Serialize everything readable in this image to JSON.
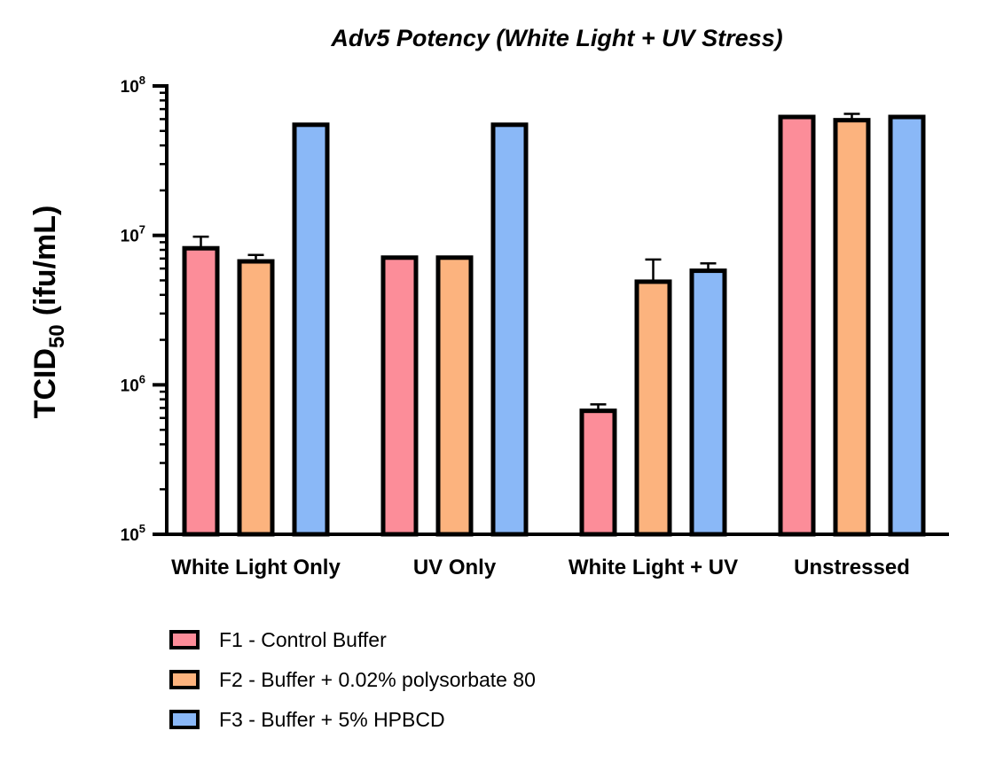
{
  "chart_data": {
    "type": "bar",
    "title": "Adv5 Potency (White Light + UV Stress)",
    "ylabel": {
      "main": "TCID",
      "subscript": "50",
      "unit": "(ifu/mL)"
    },
    "xlabel": "",
    "yscale": "log",
    "ylim": [
      100000,
      100000000
    ],
    "yticks": [
      {
        "base": "10",
        "exp": "5",
        "value": 100000
      },
      {
        "base": "10",
        "exp": "6",
        "value": 1000000
      },
      {
        "base": "10",
        "exp": "7",
        "value": 10000000
      },
      {
        "base": "10",
        "exp": "8",
        "value": 100000000
      }
    ],
    "categories": [
      "White Light Only",
      "UV Only",
      "White Light + UV",
      "Unstressed"
    ],
    "series": [
      {
        "name": "F1 - Control Buffer",
        "color": "#fc8d99",
        "values": [
          8200000,
          7100000,
          670000,
          62000000
        ],
        "errors": [
          9800000,
          null,
          740000,
          null
        ]
      },
      {
        "name": "F2 - Buffer + 0.02% polysorbate 80",
        "color": "#fcb37e",
        "values": [
          6700000,
          7100000,
          4900000,
          59000000
        ],
        "errors": [
          7400000,
          null,
          6900000,
          65000000
        ]
      },
      {
        "name": "F3 - Buffer + 5% HPBCD",
        "color": "#8ab8f7",
        "values": [
          55000000,
          55000000,
          5800000,
          62000000
        ],
        "errors": [
          null,
          null,
          6500000,
          null
        ]
      }
    ],
    "legend_position": "bottom-left",
    "grid": false
  }
}
